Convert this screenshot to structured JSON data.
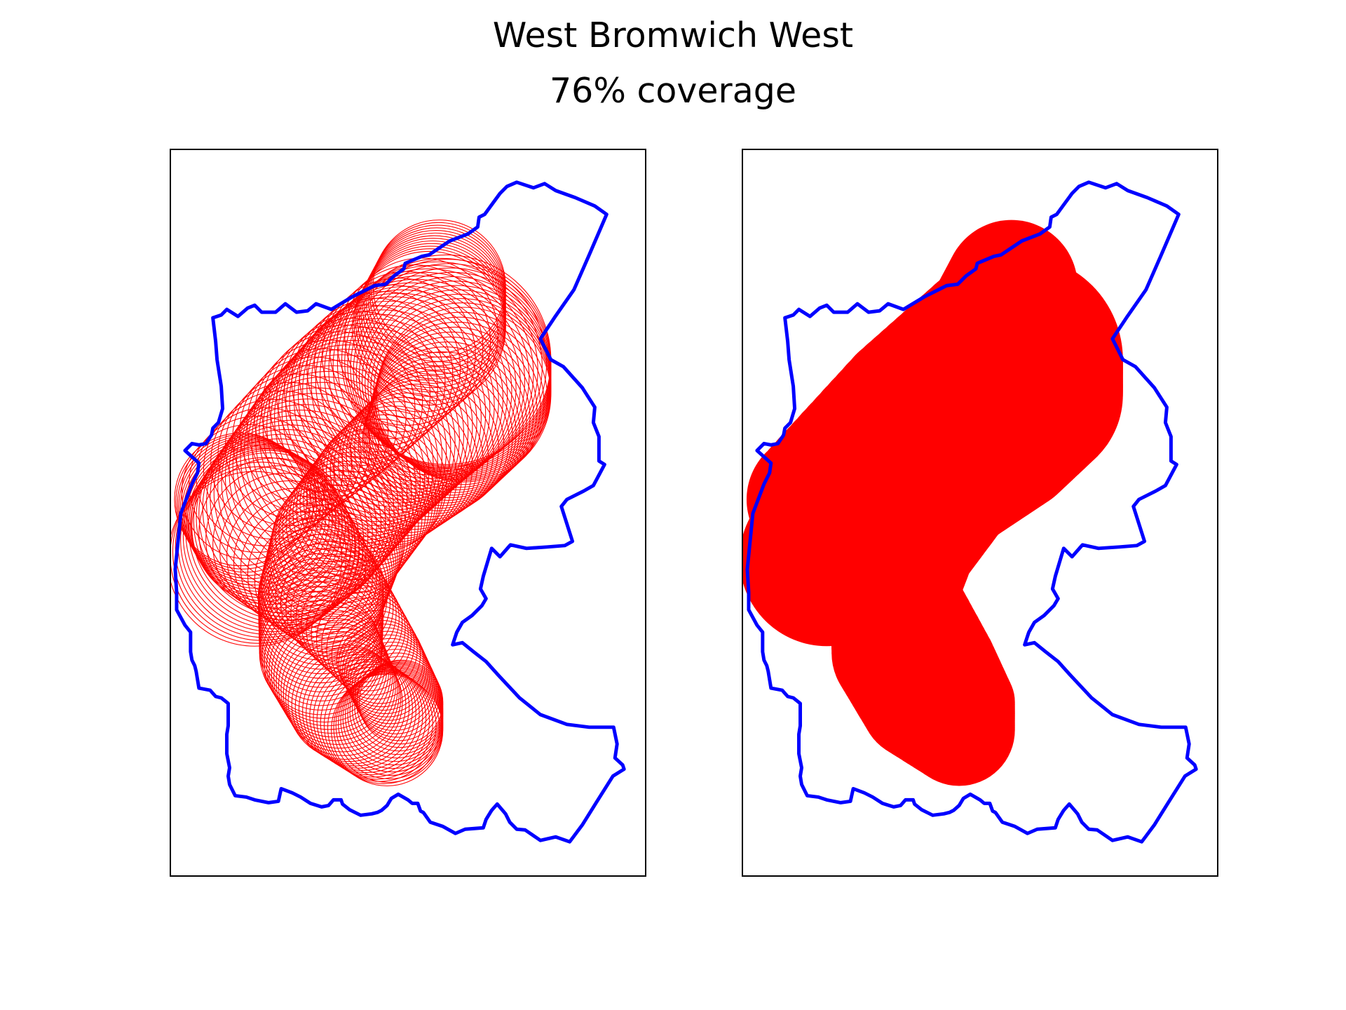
{
  "figure": {
    "title": "West Bromwich West",
    "subtitle": "76% coverage"
  },
  "map": {
    "region_name": "West Bromwich West",
    "coverage_percent": 76,
    "boundary_color": "#0000ff",
    "coverage_color": "#ff0000",
    "panels": [
      {
        "id": "left",
        "style": "circle-outlines"
      },
      {
        "id": "right",
        "style": "filled-union"
      }
    ]
  }
}
